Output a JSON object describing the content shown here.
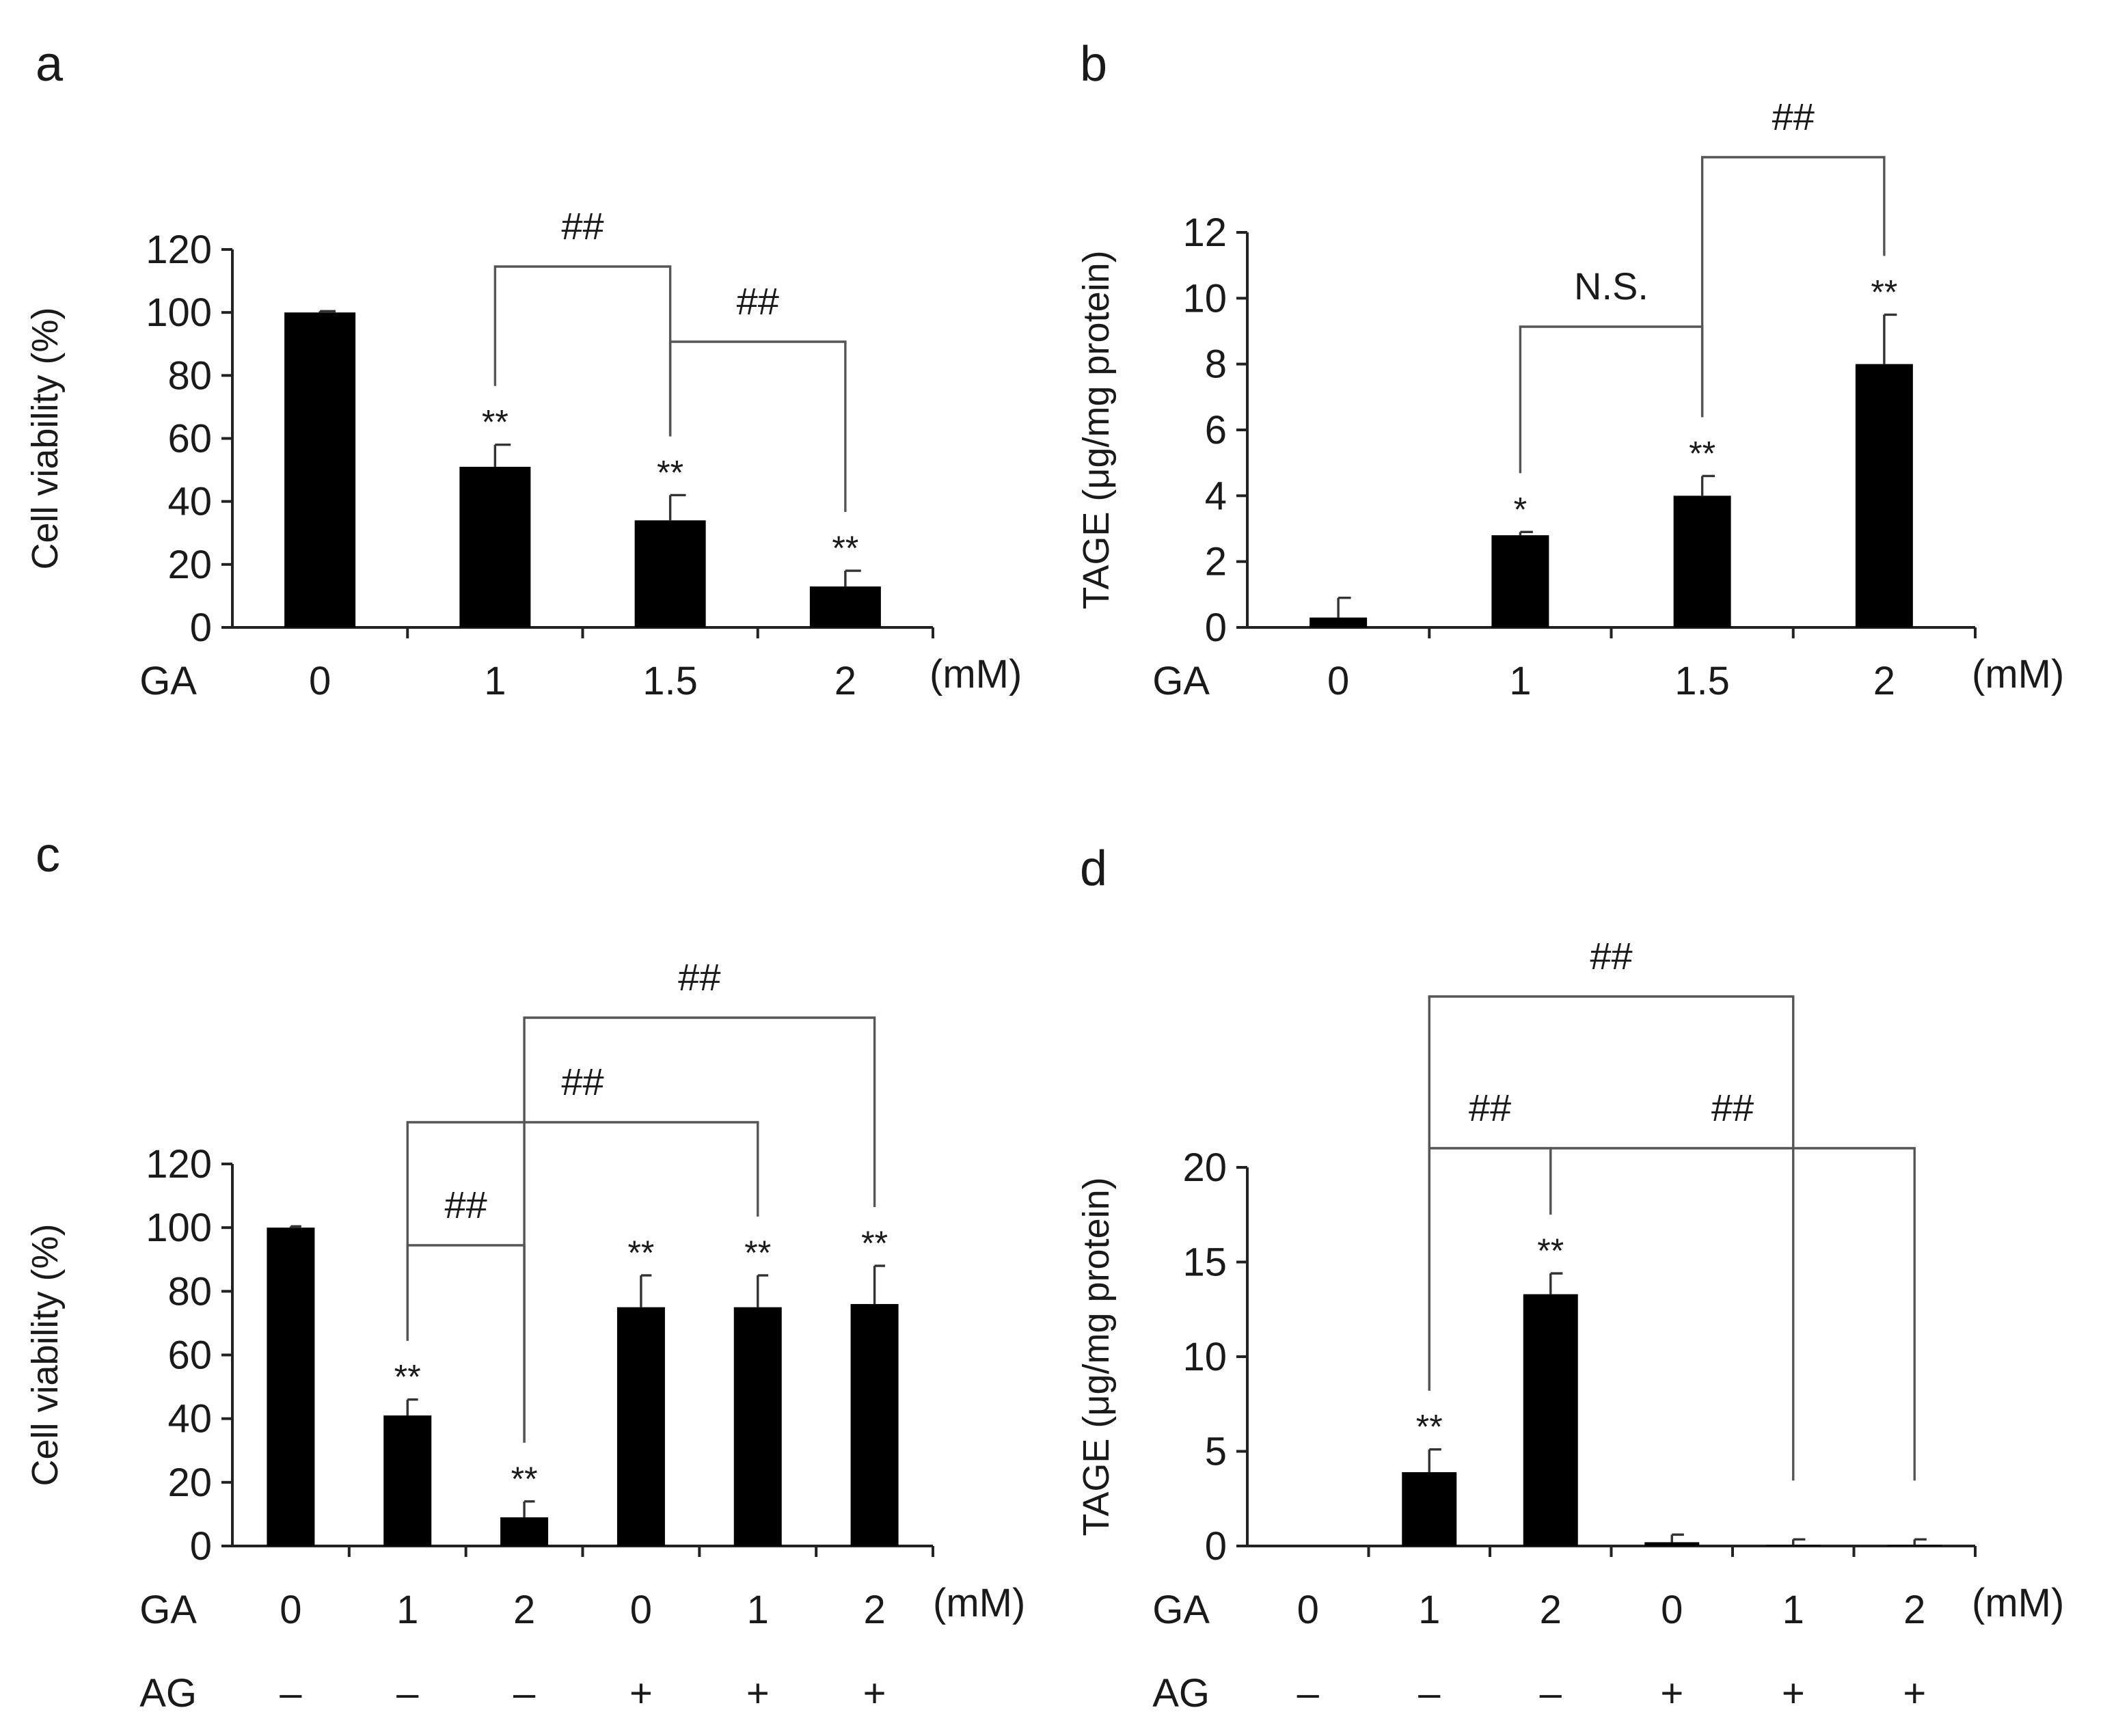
{
  "colors": {
    "bar": "#000000",
    "axis": "#222222",
    "bracket": "#555555",
    "text": "#1a1a1a"
  },
  "chart_data": [
    {
      "panel": "a",
      "type": "bar",
      "ylabel": "Cell viability (%)",
      "ylim": [
        0,
        120
      ],
      "yticks": [
        "0",
        "20",
        "40",
        "60",
        "80",
        "100",
        "120"
      ],
      "row_labels": [
        "GA"
      ],
      "categories": [
        [
          "0"
        ],
        [
          "1"
        ],
        [
          "1.5"
        ],
        [
          "2"
        ]
      ],
      "unit": "(mM)",
      "values": [
        100,
        51,
        34,
        13
      ],
      "errors": [
        0.4,
        7,
        8,
        5
      ],
      "significance": [
        "",
        "**",
        "**",
        "**"
      ],
      "comparisons": [
        {
          "from": 1,
          "to": 2,
          "label": "##"
        },
        {
          "from": 2,
          "to": 3,
          "label": "##"
        }
      ]
    },
    {
      "panel": "b",
      "type": "bar",
      "ylabel": "TAGE (μg/mg protein)",
      "ylim": [
        0,
        12
      ],
      "yticks": [
        "0",
        "2",
        "4",
        "6",
        "8",
        "10",
        "12"
      ],
      "row_labels": [
        "GA"
      ],
      "categories": [
        [
          "0"
        ],
        [
          "1"
        ],
        [
          "1.5"
        ],
        [
          "2"
        ]
      ],
      "unit": "(mM)",
      "values": [
        0.3,
        2.8,
        4.0,
        8.0
      ],
      "errors": [
        0.6,
        0.1,
        0.6,
        1.5
      ],
      "significance": [
        "",
        "*",
        "**",
        "**"
      ],
      "comparisons": [
        {
          "from": 1,
          "to": 2,
          "label": "N.S."
        },
        {
          "from": 2,
          "to": 3,
          "label": "##"
        }
      ]
    },
    {
      "panel": "c",
      "type": "bar",
      "ylabel": "Cell viability (%)",
      "ylim": [
        0,
        120
      ],
      "yticks": [
        "0",
        "20",
        "40",
        "60",
        "80",
        "100",
        "120"
      ],
      "row_labels": [
        "GA",
        "AG"
      ],
      "categories": [
        [
          "0",
          "–"
        ],
        [
          "1",
          "–"
        ],
        [
          "2",
          "–"
        ],
        [
          "0",
          "+"
        ],
        [
          "1",
          "+"
        ],
        [
          "2",
          "+"
        ]
      ],
      "unit": "(mM)",
      "values": [
        100,
        41,
        9,
        75,
        75,
        76
      ],
      "errors": [
        0.4,
        5,
        5,
        10,
        10,
        12
      ],
      "significance": [
        "",
        "**",
        "**",
        "**",
        "**",
        "**"
      ],
      "comparisons": [
        {
          "from": 1,
          "to": 2,
          "label": "##"
        },
        {
          "from": 1,
          "to": 4,
          "label": "##"
        },
        {
          "from": 2,
          "to": 5,
          "label": "##"
        }
      ]
    },
    {
      "panel": "d",
      "type": "bar",
      "ylabel": "TAGE (μg/mg protein)",
      "ylim": [
        0,
        20
      ],
      "yticks": [
        "0",
        "5",
        "10",
        "15",
        "20"
      ],
      "row_labels": [
        "GA",
        "AG"
      ],
      "categories": [
        [
          "0",
          "–"
        ],
        [
          "1",
          "–"
        ],
        [
          "2",
          "–"
        ],
        [
          "0",
          "+"
        ],
        [
          "1",
          "+"
        ],
        [
          "2",
          "+"
        ]
      ],
      "unit": "(mM)",
      "values": [
        0,
        3.9,
        13.3,
        0.2,
        0.05,
        0.05
      ],
      "errors": [
        0,
        1.2,
        1.1,
        0.4,
        0.3,
        0.3
      ],
      "significance": [
        "",
        "**",
        "**",
        "",
        "",
        ""
      ],
      "comparisons": [
        {
          "from": 1,
          "to": 2,
          "label": "##"
        },
        {
          "from": 2,
          "to": 5,
          "label": "##"
        },
        {
          "from": 1,
          "to": 4,
          "label": "##"
        }
      ]
    }
  ]
}
